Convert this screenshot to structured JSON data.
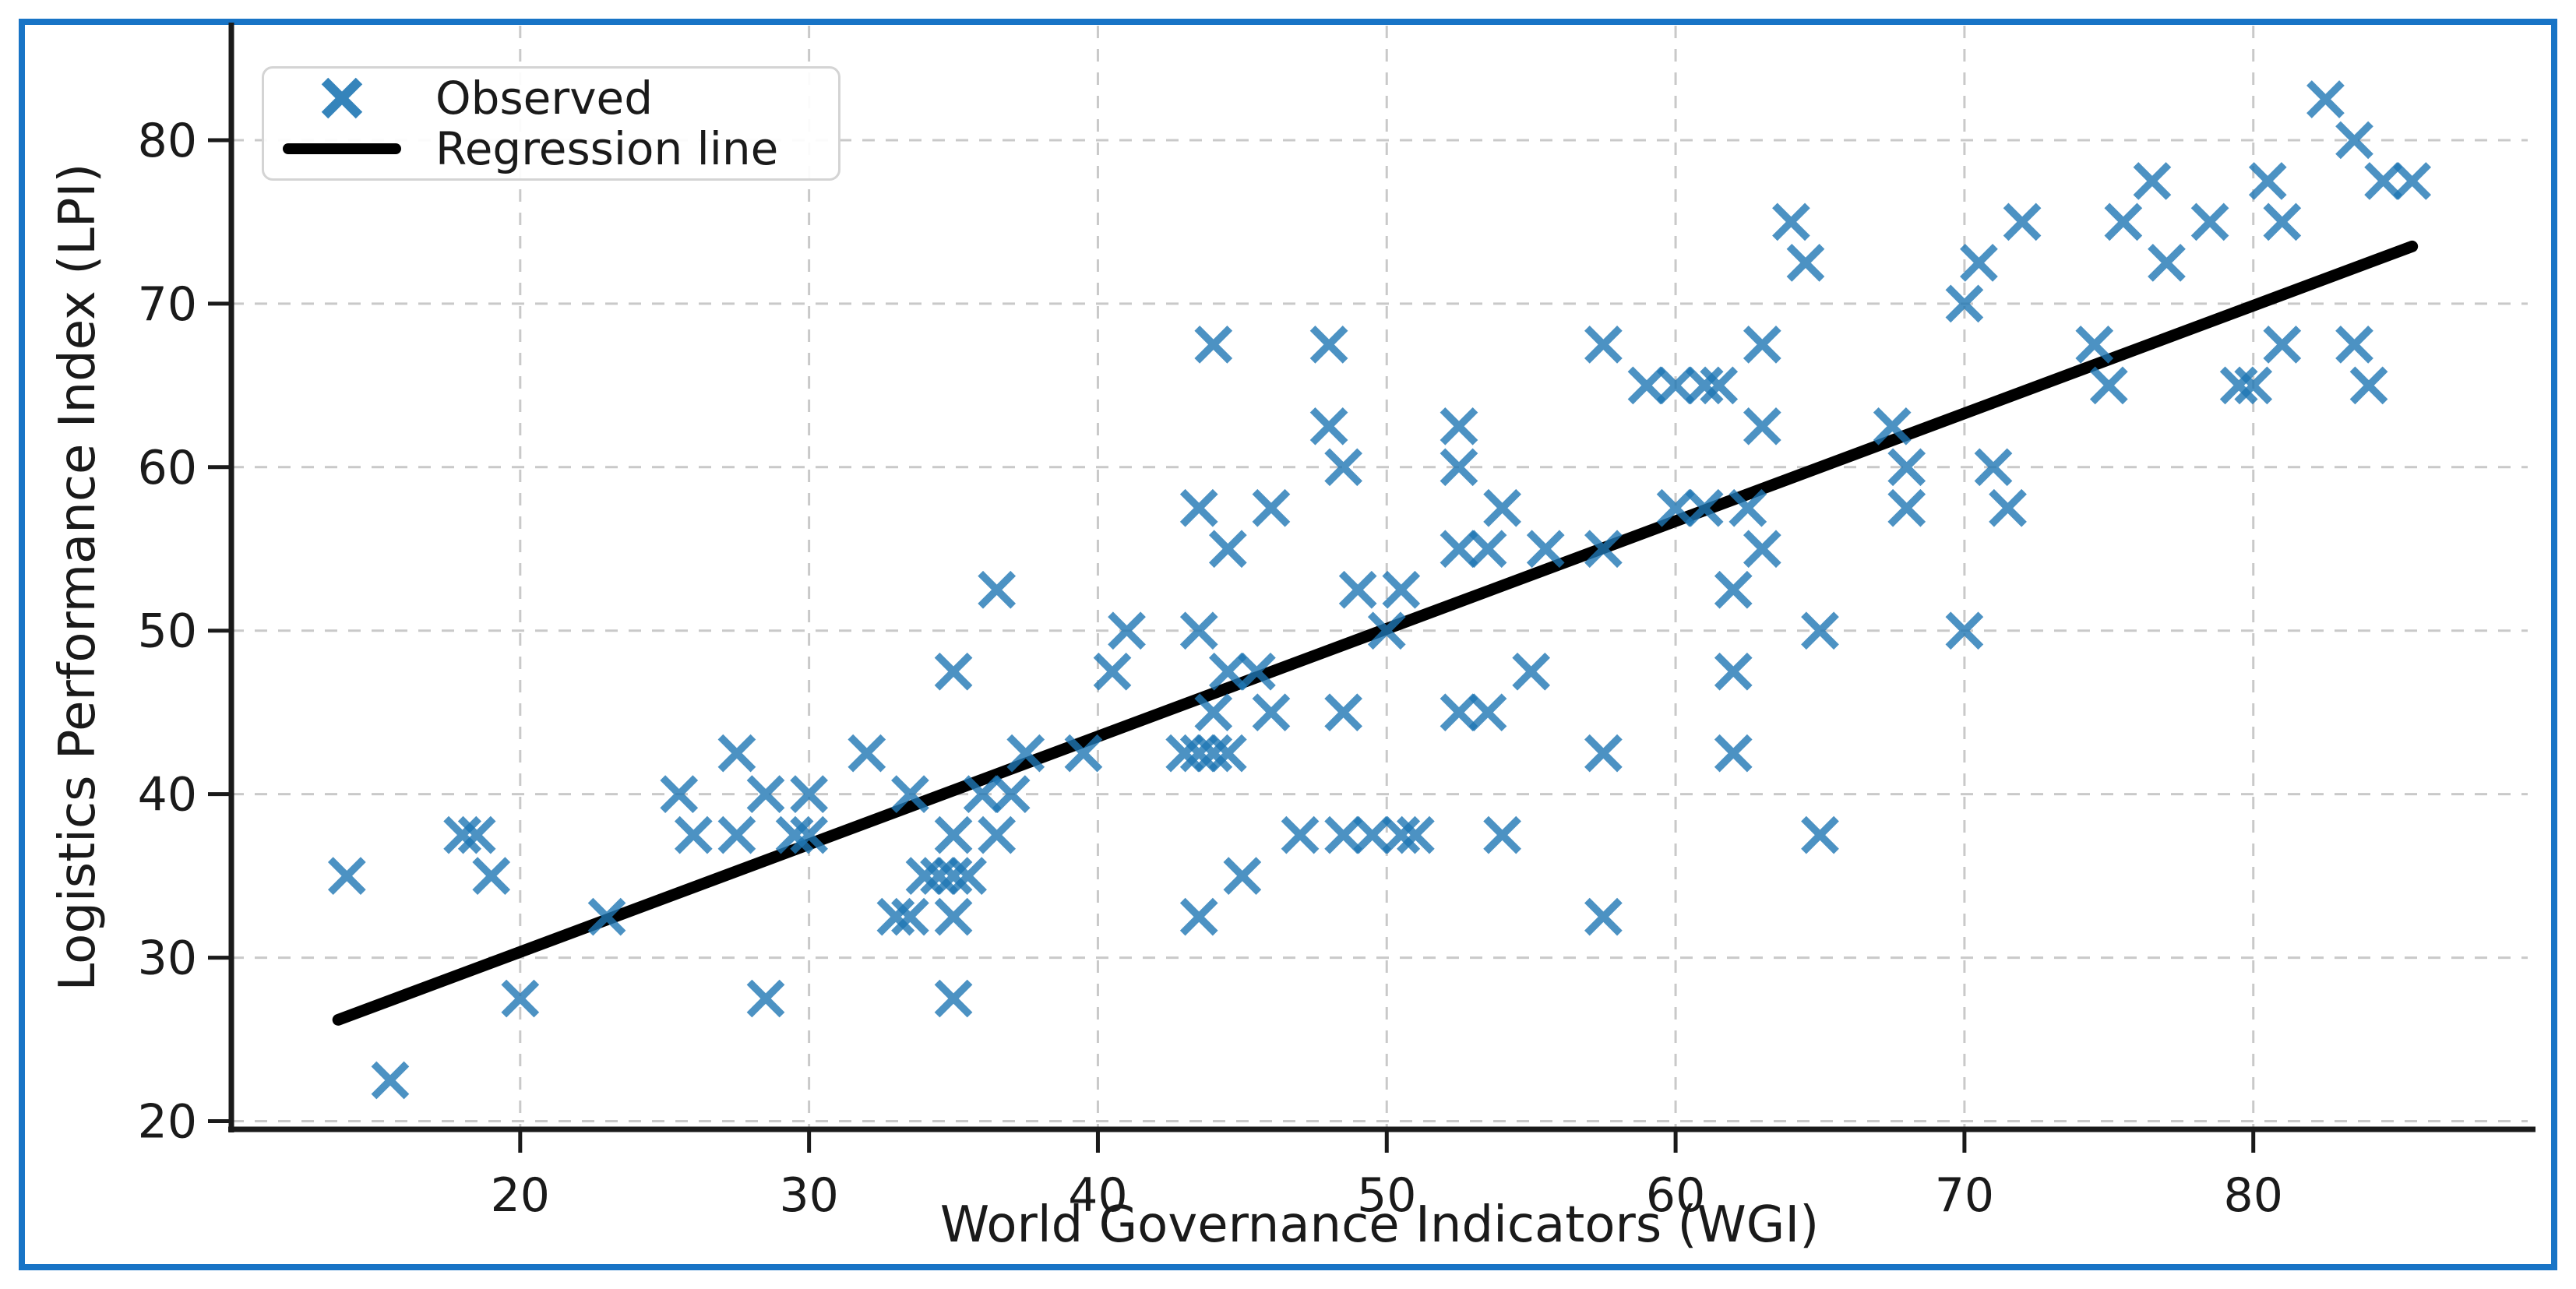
{
  "figure": {
    "border_color": "#1874c6",
    "background_color": "#ffffff",
    "spine_color": "#1a1a1a",
    "grid_color": "#c9c9c9",
    "text_color": "#1a1a1a"
  },
  "chart_data": {
    "type": "scatter",
    "title": "",
    "xlabel": "World Governance Indicators (WGI)",
    "ylabel": "Logistics Performance Index (LPI)",
    "xlim": [
      10,
      89.5
    ],
    "ylim": [
      19.5,
      87
    ],
    "xticks": [
      20,
      30,
      40,
      50,
      60,
      70,
      80
    ],
    "yticks": [
      20,
      30,
      40,
      50,
      60,
      70,
      80
    ],
    "grid": true,
    "grid_style": "dashed",
    "legend": {
      "position": "upper left",
      "entries": [
        {
          "label": "Observed",
          "type": "marker-x",
          "color": "#1f77b4"
        },
        {
          "label": "Regression line",
          "type": "line",
          "color": "#000000"
        }
      ]
    },
    "series": [
      {
        "name": "Observed",
        "type": "scatter",
        "marker": "x",
        "color": "#1f77b4",
        "opacity": 0.8,
        "points": [
          [
            82.5,
            82.5
          ],
          [
            83.5,
            80
          ],
          [
            76.5,
            77.5
          ],
          [
            80.5,
            77.5
          ],
          [
            84.5,
            77.5
          ],
          [
            85.5,
            77.5
          ],
          [
            64,
            75
          ],
          [
            72,
            75
          ],
          [
            75.5,
            75
          ],
          [
            78.5,
            75
          ],
          [
            81,
            75
          ],
          [
            64.5,
            72.5
          ],
          [
            70.5,
            72.5
          ],
          [
            77,
            72.5
          ],
          [
            70,
            70
          ],
          [
            44,
            67.5
          ],
          [
            48,
            67.5
          ],
          [
            57.5,
            67.5
          ],
          [
            63,
            67.5
          ],
          [
            74.5,
            67.5
          ],
          [
            81,
            67.5
          ],
          [
            83.5,
            67.5
          ],
          [
            59,
            65
          ],
          [
            60,
            65
          ],
          [
            61,
            65
          ],
          [
            61.5,
            65
          ],
          [
            75,
            65
          ],
          [
            79.5,
            65
          ],
          [
            80,
            65
          ],
          [
            84,
            65
          ],
          [
            48,
            62.5
          ],
          [
            52.5,
            62.5
          ],
          [
            63,
            62.5
          ],
          [
            67.5,
            62.5
          ],
          [
            48.5,
            60
          ],
          [
            52.5,
            60
          ],
          [
            68,
            60
          ],
          [
            71,
            60
          ],
          [
            43.5,
            57.5
          ],
          [
            46,
            57.5
          ],
          [
            54,
            57.5
          ],
          [
            60,
            57.5
          ],
          [
            61,
            57.5
          ],
          [
            62.5,
            57.5
          ],
          [
            68,
            57.5
          ],
          [
            71.5,
            57.5
          ],
          [
            44.5,
            55
          ],
          [
            52.5,
            55
          ],
          [
            53.5,
            55
          ],
          [
            55.5,
            55
          ],
          [
            57.5,
            55
          ],
          [
            63,
            55
          ],
          [
            36.5,
            52.5
          ],
          [
            49,
            52.5
          ],
          [
            50.5,
            52.5
          ],
          [
            62,
            52.5
          ],
          [
            41,
            50
          ],
          [
            43.5,
            50
          ],
          [
            50,
            50
          ],
          [
            65,
            50
          ],
          [
            70,
            50
          ],
          [
            35,
            47.5
          ],
          [
            40.5,
            47.5
          ],
          [
            44.5,
            47.5
          ],
          [
            45.5,
            47.5
          ],
          [
            55,
            47.5
          ],
          [
            62,
            47.5
          ],
          [
            44,
            45
          ],
          [
            46,
            45
          ],
          [
            48.5,
            45
          ],
          [
            52.5,
            45
          ],
          [
            53.5,
            45
          ],
          [
            27.5,
            42.5
          ],
          [
            32,
            42.5
          ],
          [
            37.5,
            42.5
          ],
          [
            39.5,
            42.5
          ],
          [
            43,
            42.5
          ],
          [
            43.5,
            42.5
          ],
          [
            44,
            42.5
          ],
          [
            44.5,
            42.5
          ],
          [
            57.5,
            42.5
          ],
          [
            62,
            42.5
          ],
          [
            25.5,
            40
          ],
          [
            28.5,
            40
          ],
          [
            30,
            40
          ],
          [
            33.5,
            40
          ],
          [
            36,
            40
          ],
          [
            37,
            40
          ],
          [
            18,
            37.5
          ],
          [
            18.5,
            37.5
          ],
          [
            26,
            37.5
          ],
          [
            27.5,
            37.5
          ],
          [
            29.5,
            37.5
          ],
          [
            30,
            37.5
          ],
          [
            35,
            37.5
          ],
          [
            36.5,
            37.5
          ],
          [
            47,
            37.5
          ],
          [
            48.5,
            37.5
          ],
          [
            49.5,
            37.5
          ],
          [
            50.5,
            37.5
          ],
          [
            51,
            37.5
          ],
          [
            54,
            37.5
          ],
          [
            65,
            37.5
          ],
          [
            14,
            35
          ],
          [
            19,
            35
          ],
          [
            34,
            35
          ],
          [
            34.5,
            35
          ],
          [
            35,
            35
          ],
          [
            35.5,
            35
          ],
          [
            45,
            35
          ],
          [
            23,
            32.5
          ],
          [
            33,
            32.5
          ],
          [
            33.5,
            32.5
          ],
          [
            35,
            32.5
          ],
          [
            43.5,
            32.5
          ],
          [
            57.5,
            32.5
          ],
          [
            20,
            27.5
          ],
          [
            28.5,
            27.5
          ],
          [
            35,
            27.5
          ],
          [
            15.5,
            22.5
          ]
        ]
      },
      {
        "name": "Regression line",
        "type": "line",
        "color": "#000000",
        "endpoints": [
          [
            13.7,
            26.2
          ],
          [
            85.5,
            73.5
          ]
        ]
      }
    ]
  }
}
